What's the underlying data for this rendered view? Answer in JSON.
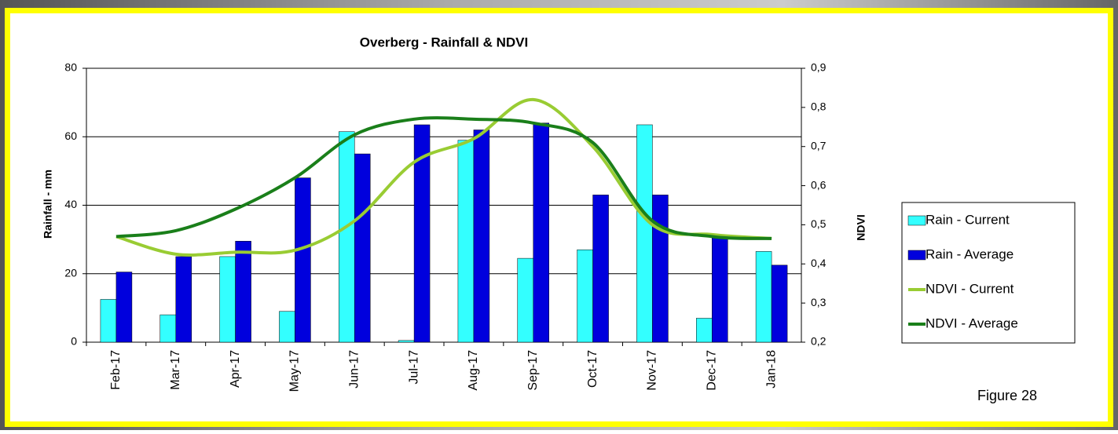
{
  "chart_data": {
    "type": "bar",
    "title": "Overberg - Rainfall & NDVI",
    "ylabel": "Rainfall - mm",
    "y2label": "NDVI",
    "annotation": "Figure 28",
    "categories": [
      "Feb-17",
      "Mar-17",
      "Apr-17",
      "May-17",
      "Jun-17",
      "Jul-17",
      "Aug-17",
      "Sep-17",
      "Oct-17",
      "Nov-17",
      "Dec-17",
      "Jan-18"
    ],
    "series": [
      {
        "name": "Rain - Current",
        "type": "bar",
        "color": "#33ffff",
        "values": [
          12.5,
          8,
          25,
          9,
          61.5,
          0.5,
          59,
          24.5,
          27,
          63.5,
          7,
          26.5
        ]
      },
      {
        "name": "Rain - Average",
        "type": "bar",
        "color": "#0000dd",
        "values": [
          20.5,
          25,
          29.5,
          48,
          55,
          63.5,
          62,
          64,
          43,
          43,
          31,
          22.5
        ]
      },
      {
        "name": "NDVI - Current",
        "type": "line",
        "axis": "y2",
        "color": "#99cc33",
        "values": [
          0.47,
          0.425,
          0.43,
          0.435,
          0.51,
          0.66,
          0.72,
          0.82,
          0.7,
          0.5,
          0.475,
          0.465
        ]
      },
      {
        "name": "NDVI - Average",
        "type": "line",
        "axis": "y2",
        "color": "#1a7f1a",
        "values": [
          0.47,
          0.485,
          0.54,
          0.62,
          0.73,
          0.77,
          0.77,
          0.76,
          0.71,
          0.51,
          0.47,
          0.465
        ]
      }
    ],
    "ylim": [
      0,
      80
    ],
    "yticks": [
      0,
      20,
      40,
      60,
      80
    ],
    "y2lim": [
      0.2,
      0.9
    ],
    "y2ticks": [
      {
        "value": 0.2,
        "label": "0,2"
      },
      {
        "value": 0.3,
        "label": "0,3"
      },
      {
        "value": 0.4,
        "label": "0,4"
      },
      {
        "value": 0.5,
        "label": "0,5"
      },
      {
        "value": 0.6,
        "label": "0,6"
      },
      {
        "value": 0.7,
        "label": "0,7"
      },
      {
        "value": 0.8,
        "label": "0,8"
      },
      {
        "value": 0.9,
        "label": "0,9"
      }
    ],
    "grid": true,
    "legend": "right"
  }
}
